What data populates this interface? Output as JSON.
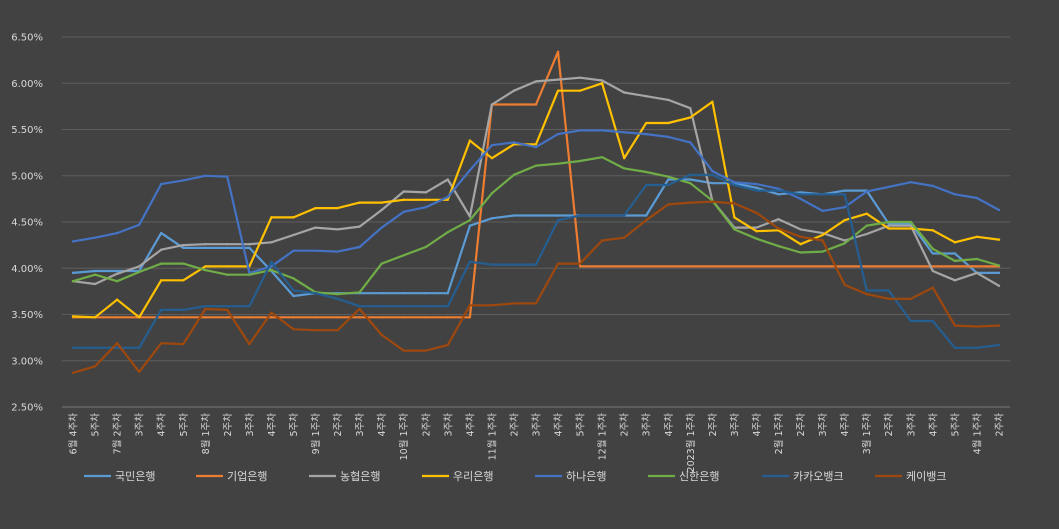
{
  "chart_data": {
    "type": "line",
    "ylim": [
      0.025,
      0.065
    ],
    "yticks": [
      "2.50%",
      "3.00%",
      "3.50%",
      "4.00%",
      "4.50%",
      "5.00%",
      "5.50%",
      "6.00%",
      "6.50%"
    ],
    "grid": true,
    "legend_position": "bottom",
    "categories": [
      "6월 4주차",
      "5주차",
      "7월 2주차",
      "3주차",
      "4주차",
      "5주차",
      "8월 1주차",
      "2주차",
      "3주차",
      "4주차",
      "5주차",
      "9월 1주차",
      "2주차",
      "3주차",
      "4주차",
      "10월 1주차",
      "2주차",
      "3주차",
      "4주차",
      "11월 1주차",
      "2주차",
      "3주차",
      "4주차",
      "5주차",
      "12월 1주차",
      "2주차",
      "3주차",
      "4주차",
      "2023월 1주차",
      "2주차",
      "3주차",
      "4주차",
      "2월 1주차",
      "2주차",
      "3주차",
      "4주차",
      "3월 1주차",
      "2주차",
      "3주차",
      "4주차",
      "5주차",
      "4월 1주차",
      "2주차"
    ],
    "series": [
      {
        "name": "국민은행",
        "color": "#5b9bd5",
        "values": [
          3.95,
          3.97,
          3.97,
          3.97,
          4.38,
          4.22,
          4.22,
          4.22,
          4.22,
          3.97,
          3.7,
          3.73,
          3.73,
          3.73,
          3.73,
          3.73,
          3.73,
          3.73,
          4.46,
          4.54,
          4.57,
          4.57,
          4.57,
          4.57,
          4.57,
          4.57,
          4.57,
          4.96,
          4.96,
          4.92,
          4.92,
          4.87,
          4.8,
          4.82,
          4.8,
          4.84,
          4.84,
          4.48,
          4.48,
          4.16,
          4.16,
          3.95,
          3.95
        ]
      },
      {
        "name": "기업은행",
        "color": "#ed7d31",
        "values": [
          3.47,
          3.47,
          3.47,
          3.47,
          3.47,
          3.47,
          3.47,
          3.47,
          3.47,
          3.47,
          3.47,
          3.47,
          3.47,
          3.47,
          3.47,
          3.47,
          3.47,
          3.47,
          3.47,
          5.77,
          5.77,
          5.77,
          6.34,
          4.02,
          4.02,
          4.02,
          4.02,
          4.02,
          4.02,
          4.02,
          4.02,
          4.02,
          4.02,
          4.02,
          4.02,
          4.02,
          4.02,
          4.02,
          4.02,
          4.02,
          4.02,
          4.02,
          4.02
        ]
      },
      {
        "name": "농협은행",
        "color": "#a5a5a5",
        "values": [
          3.86,
          3.83,
          3.94,
          4.02,
          4.2,
          4.25,
          4.26,
          4.26,
          4.26,
          4.28,
          4.36,
          4.44,
          4.42,
          4.45,
          4.63,
          4.83,
          4.82,
          4.96,
          4.56,
          5.77,
          5.92,
          6.02,
          6.04,
          6.06,
          6.03,
          5.9,
          5.86,
          5.82,
          5.73,
          4.73,
          4.44,
          4.44,
          4.53,
          4.42,
          4.38,
          4.3,
          4.37,
          4.46,
          4.46,
          3.97,
          3.87,
          3.95,
          3.81
        ]
      },
      {
        "name": "우리은행",
        "color": "#ffc000",
        "values": [
          3.48,
          3.47,
          3.66,
          3.47,
          3.87,
          3.87,
          4.02,
          4.02,
          4.02,
          4.55,
          4.55,
          4.65,
          4.65,
          4.71,
          4.71,
          4.74,
          4.74,
          4.74,
          5.38,
          5.19,
          5.34,
          5.34,
          5.92,
          5.92,
          6.0,
          5.19,
          5.57,
          5.57,
          5.63,
          5.8,
          4.55,
          4.4,
          4.41,
          4.26,
          4.36,
          4.52,
          4.59,
          4.43,
          4.43,
          4.41,
          4.28,
          4.34,
          4.31
        ]
      },
      {
        "name": "하나은행",
        "color": "#4472c4",
        "values": [
          4.29,
          4.33,
          4.38,
          4.47,
          4.91,
          4.95,
          5.0,
          4.99,
          3.95,
          4.02,
          4.19,
          4.19,
          4.18,
          4.23,
          4.44,
          4.61,
          4.66,
          4.77,
          5.06,
          5.33,
          5.36,
          5.31,
          5.45,
          5.49,
          5.49,
          5.47,
          5.45,
          5.42,
          5.36,
          5.05,
          4.93,
          4.91,
          4.86,
          4.75,
          4.62,
          4.66,
          4.83,
          4.88,
          4.93,
          4.89,
          4.8,
          4.76,
          4.63
        ]
      },
      {
        "name": "신한은행",
        "color": "#70ad47",
        "values": [
          3.86,
          3.93,
          3.86,
          3.96,
          4.05,
          4.05,
          3.98,
          3.93,
          3.93,
          3.98,
          3.89,
          3.74,
          3.72,
          3.74,
          4.05,
          4.14,
          4.23,
          4.39,
          4.52,
          4.81,
          5.01,
          5.11,
          5.13,
          5.16,
          5.2,
          5.08,
          5.04,
          4.99,
          4.92,
          4.73,
          4.42,
          4.32,
          4.24,
          4.17,
          4.18,
          4.27,
          4.46,
          4.5,
          4.5,
          4.21,
          4.08,
          4.1,
          4.03
        ]
      },
      {
        "name": "카카오뱅크",
        "color": "#255e91",
        "values": [
          3.14,
          3.14,
          3.14,
          3.14,
          3.55,
          3.55,
          3.59,
          3.59,
          3.59,
          4.07,
          3.76,
          3.73,
          3.67,
          3.59,
          3.59,
          3.59,
          3.59,
          3.59,
          4.07,
          4.04,
          4.04,
          4.04,
          4.52,
          4.57,
          4.57,
          4.57,
          4.9,
          4.9,
          5.01,
          5.01,
          4.9,
          4.84,
          4.84,
          4.8,
          4.8,
          4.8,
          3.76,
          3.76,
          3.43,
          3.43,
          3.14,
          3.14,
          3.17
        ]
      },
      {
        "name": "케이뱅크",
        "color": "#9e480e",
        "values": [
          2.87,
          2.94,
          3.19,
          2.88,
          3.19,
          3.18,
          3.56,
          3.55,
          3.18,
          3.52,
          3.34,
          3.33,
          3.33,
          3.56,
          3.28,
          3.11,
          3.11,
          3.17,
          3.6,
          3.6,
          3.62,
          3.62,
          4.05,
          4.05,
          4.3,
          4.33,
          4.52,
          4.69,
          4.71,
          4.72,
          4.7,
          4.6,
          4.43,
          4.34,
          4.3,
          3.82,
          3.72,
          3.67,
          3.67,
          3.79,
          3.38,
          3.37,
          3.38
        ]
      }
    ]
  }
}
